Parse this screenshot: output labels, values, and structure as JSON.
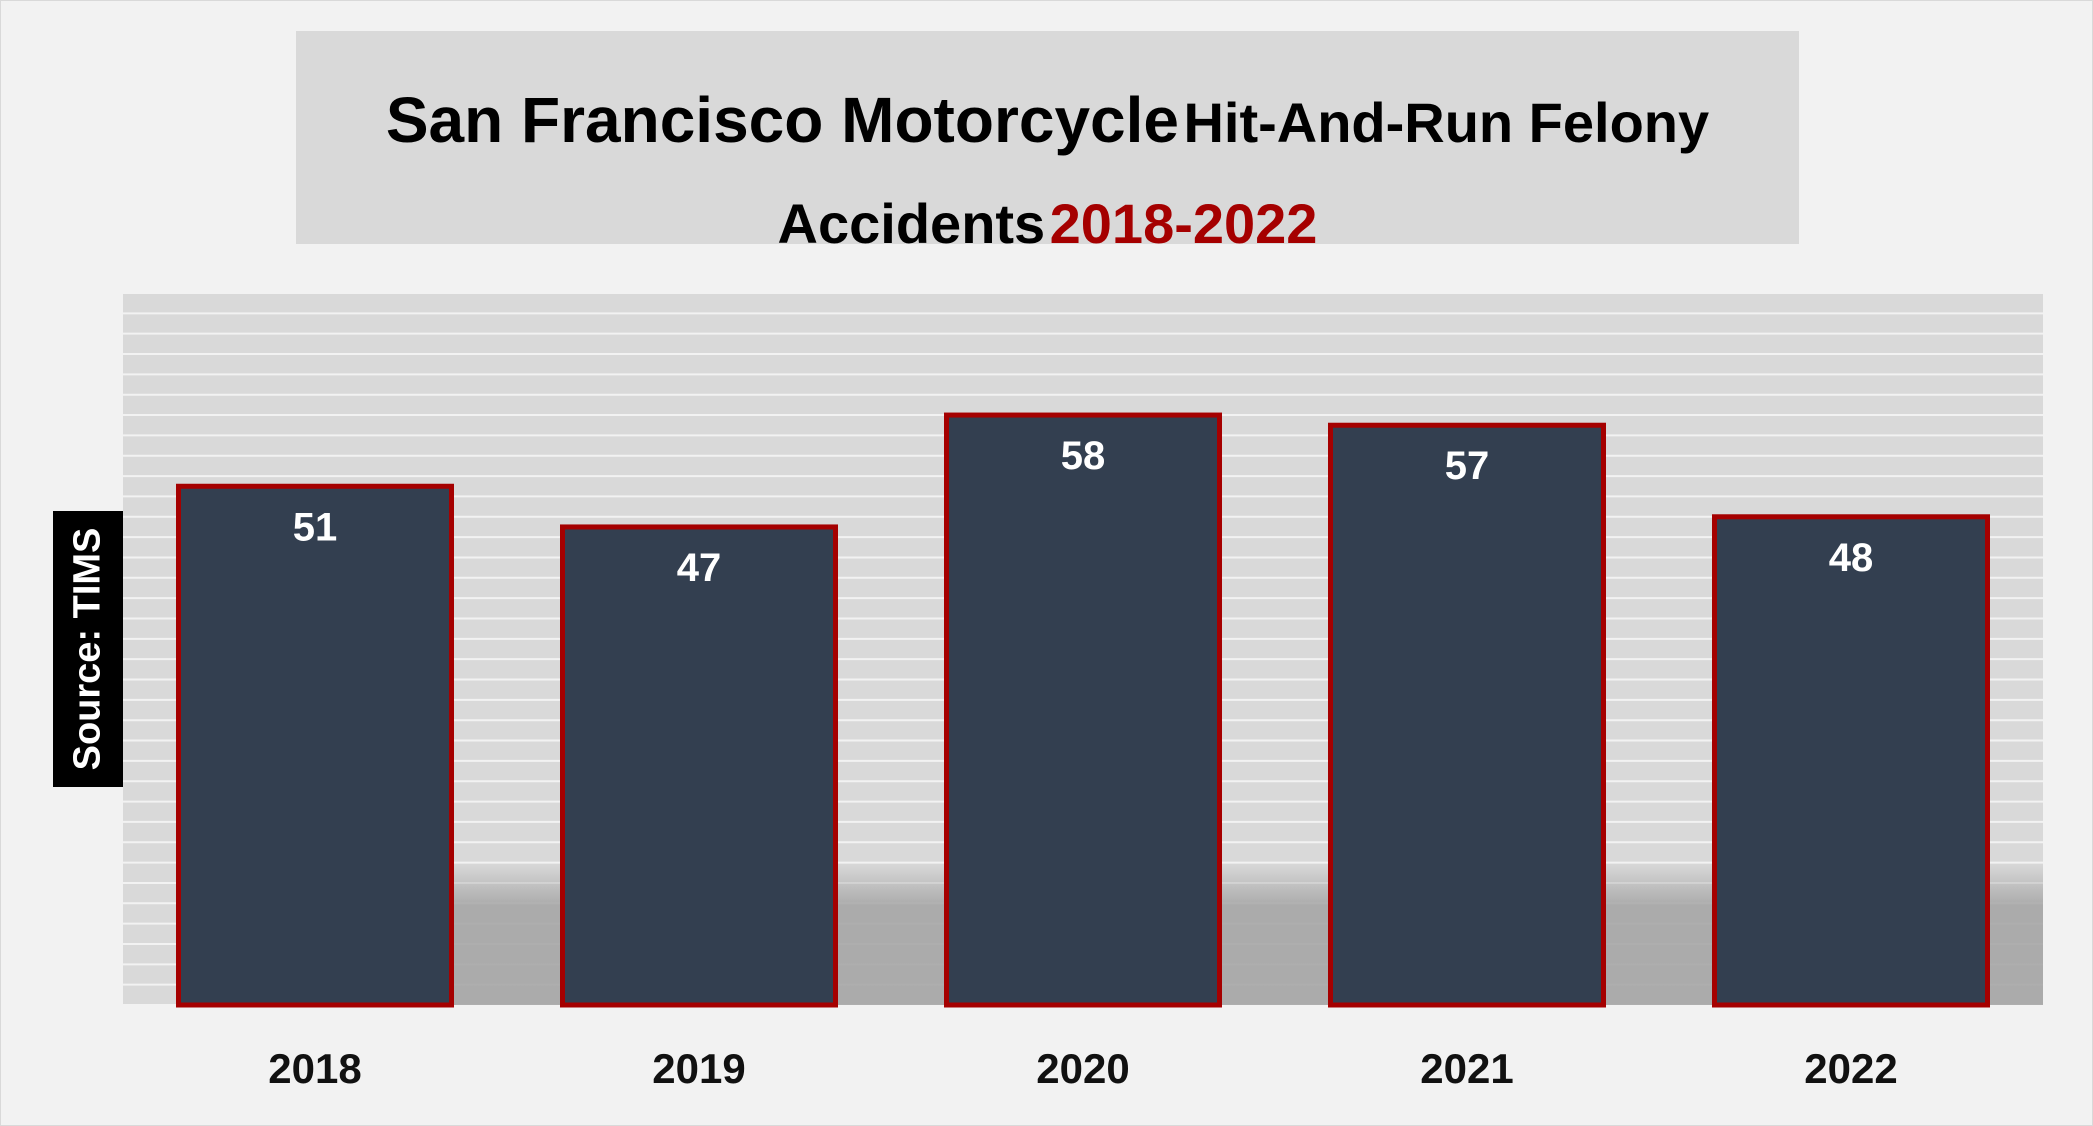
{
  "title": {
    "line1_part1": "San Francisco Motorcycle",
    "line1_part2": "Hit-And-Run Felony",
    "line2_part1": "Accidents",
    "line2_part2": "2018-2022"
  },
  "source_label": "Source: TIMS",
  "colors": {
    "background": "#f2f2f2",
    "plot_area": "#d9d9d9",
    "bar_fill": "#333f50",
    "bar_border": "#a50000",
    "title_accent": "#a50000"
  },
  "chart_data": {
    "type": "bar",
    "categories": [
      "2018",
      "2019",
      "2020",
      "2021",
      "2022"
    ],
    "values": [
      51,
      47,
      58,
      57,
      48
    ],
    "title": "San Francisco Motorcycle Hit-And-Run Felony Accidents 2018-2022",
    "xlabel": "",
    "ylabel": "",
    "ylim": [
      0,
      70
    ],
    "grid": true,
    "legend": "none",
    "data_labels": true
  }
}
